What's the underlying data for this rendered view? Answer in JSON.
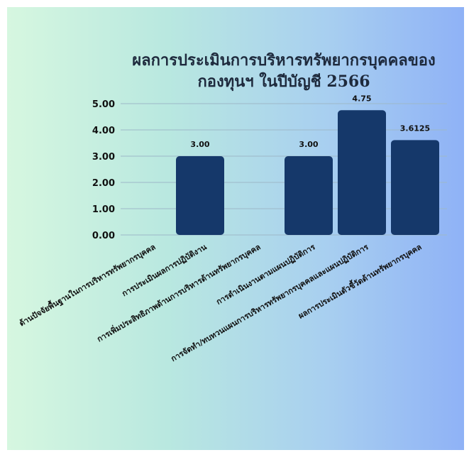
{
  "chart_data": {
    "type": "bar",
    "title_lines": [
      "ผลการประเมินการบริหารทรัพยากรบุคคลของ",
      "กองทุนฯ ในปีบัญชี 2566"
    ],
    "categories": [
      "ด้านปัจจัยพื้นฐานในการบริหารทรัพยากรบุคคล",
      "การประเมินผลการปฏิบัติงาน",
      "การเพิ่มประสิทธิภาพด้านการบริหารด้านทรัพยากรบุคคล",
      "การดำเนินงานตามแผนปฏิบัติการ",
      "การจัดทำ/ทบทวนแผนการบริหารทรัพยากรบุคคลและแผนปฏิบัติการ",
      "ผลการประเมินตัวชี้วัดด้านทรัพยากรบุคคล"
    ],
    "values": [
      0,
      3.0,
      0,
      3.0,
      4.75,
      3.6125
    ],
    "value_labels": [
      "",
      "3.00",
      "",
      "3.00",
      "4.75",
      "3.6125"
    ],
    "y_ticks": [
      "0.00",
      "1.00",
      "2.00",
      "3.00",
      "4.00",
      "5.00"
    ],
    "ylim": [
      0,
      5
    ],
    "grid": true,
    "bar_color": "#15386a",
    "grid_color": "#9db8c8"
  }
}
